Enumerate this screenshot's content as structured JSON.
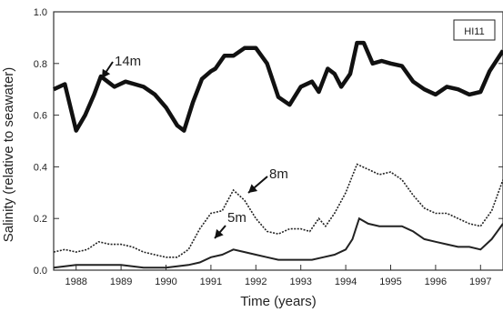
{
  "chart_data": {
    "type": "line",
    "title": "",
    "panel_label": "HI11",
    "xlabel": "Time (years)",
    "ylabel": "Salinity (relative to seawater)",
    "xlim": [
      1987.5,
      1997.5
    ],
    "ylim": [
      0,
      1.0
    ],
    "grid": false,
    "x_ticks": [
      "1988",
      "1989",
      "1990",
      "1991",
      "1992",
      "1993",
      "1994",
      "1995",
      "1996",
      "1997"
    ],
    "y_ticks": [
      "0.0",
      "0.2",
      "0.4",
      "0.6",
      "0.8",
      "1.0"
    ],
    "series": [
      {
        "name": "14m",
        "style": "thick",
        "x": [
          1987.5,
          1987.75,
          1988.0,
          1988.2,
          1988.4,
          1988.55,
          1988.7,
          1988.85,
          1989.1,
          1989.3,
          1989.5,
          1989.75,
          1990.0,
          1990.25,
          1990.4,
          1990.6,
          1990.8,
          1991.0,
          1991.1,
          1991.3,
          1991.5,
          1991.75,
          1992.0,
          1992.25,
          1992.5,
          1992.75,
          1993.0,
          1993.25,
          1993.4,
          1993.6,
          1993.75,
          1993.9,
          1994.1,
          1994.25,
          1994.4,
          1994.6,
          1994.8,
          1995.0,
          1995.25,
          1995.5,
          1995.75,
          1996.0,
          1996.25,
          1996.5,
          1996.75,
          1997.0,
          1997.2,
          1997.5
        ],
        "values": [
          0.7,
          0.72,
          0.54,
          0.6,
          0.68,
          0.75,
          0.73,
          0.71,
          0.73,
          0.72,
          0.71,
          0.68,
          0.63,
          0.56,
          0.54,
          0.65,
          0.74,
          0.77,
          0.78,
          0.83,
          0.83,
          0.86,
          0.86,
          0.8,
          0.67,
          0.64,
          0.71,
          0.73,
          0.69,
          0.78,
          0.76,
          0.71,
          0.76,
          0.88,
          0.88,
          0.8,
          0.81,
          0.8,
          0.79,
          0.73,
          0.7,
          0.68,
          0.71,
          0.7,
          0.68,
          0.69,
          0.77,
          0.85
        ]
      },
      {
        "name": "8m",
        "style": "dashed",
        "x": [
          1987.5,
          1987.75,
          1988.0,
          1988.25,
          1988.5,
          1988.75,
          1989.0,
          1989.25,
          1989.5,
          1989.75,
          1990.0,
          1990.25,
          1990.5,
          1990.75,
          1991.0,
          1991.25,
          1991.5,
          1991.75,
          1992.0,
          1992.25,
          1992.5,
          1992.75,
          1993.0,
          1993.2,
          1993.4,
          1993.55,
          1993.75,
          1994.0,
          1994.25,
          1994.5,
          1994.75,
          1995.0,
          1995.25,
          1995.5,
          1995.75,
          1996.0,
          1996.25,
          1996.5,
          1996.75,
          1997.0,
          1997.25,
          1997.5
        ],
        "values": [
          0.07,
          0.08,
          0.07,
          0.08,
          0.11,
          0.1,
          0.1,
          0.09,
          0.07,
          0.06,
          0.05,
          0.05,
          0.08,
          0.16,
          0.22,
          0.23,
          0.31,
          0.27,
          0.2,
          0.15,
          0.14,
          0.16,
          0.16,
          0.15,
          0.2,
          0.17,
          0.22,
          0.3,
          0.41,
          0.39,
          0.37,
          0.38,
          0.35,
          0.29,
          0.24,
          0.22,
          0.22,
          0.2,
          0.18,
          0.17,
          0.23,
          0.35
        ]
      },
      {
        "name": "5m",
        "style": "thin",
        "x": [
          1987.5,
          1988.0,
          1988.5,
          1989.0,
          1989.5,
          1990.0,
          1990.5,
          1990.75,
          1991.0,
          1991.25,
          1991.5,
          1991.75,
          1992.0,
          1992.25,
          1992.5,
          1992.75,
          1993.0,
          1993.25,
          1993.5,
          1993.75,
          1994.0,
          1994.15,
          1994.3,
          1994.5,
          1994.75,
          1995.0,
          1995.25,
          1995.5,
          1995.75,
          1996.0,
          1996.25,
          1996.5,
          1996.75,
          1997.0,
          1997.25,
          1997.5
        ],
        "values": [
          0.01,
          0.02,
          0.02,
          0.02,
          0.01,
          0.01,
          0.02,
          0.03,
          0.05,
          0.06,
          0.08,
          0.07,
          0.06,
          0.05,
          0.04,
          0.04,
          0.04,
          0.04,
          0.05,
          0.06,
          0.08,
          0.12,
          0.2,
          0.18,
          0.17,
          0.17,
          0.17,
          0.15,
          0.12,
          0.11,
          0.1,
          0.09,
          0.09,
          0.08,
          0.12,
          0.18
        ]
      }
    ],
    "annotations": [
      {
        "text": "14m",
        "series": "14m"
      },
      {
        "text": "8m",
        "series": "8m"
      },
      {
        "text": "5m",
        "series": "5m"
      }
    ]
  }
}
